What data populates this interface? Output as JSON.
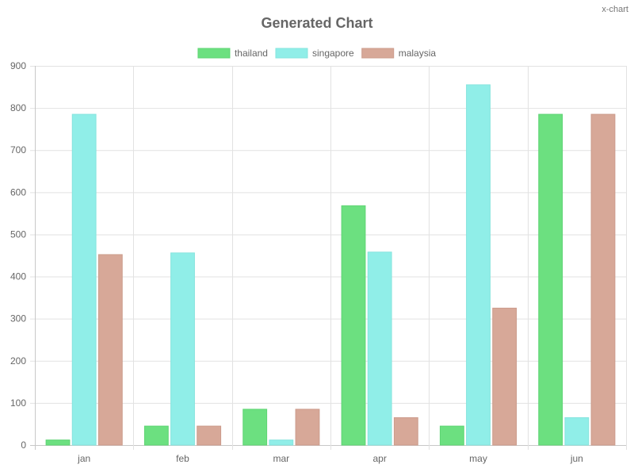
{
  "watermark": "x-chart",
  "chart_data": {
    "type": "bar",
    "title": "Generated Chart",
    "categories": [
      "jan",
      "feb",
      "mar",
      "apr",
      "may",
      "jun"
    ],
    "series": [
      {
        "name": "thailand",
        "values": [
          12,
          45,
          85,
          568,
          45,
          785
        ],
        "color": "#6ce080",
        "border": "#5fd474"
      },
      {
        "name": "singapore",
        "values": [
          785,
          456,
          12,
          458,
          855,
          65
        ],
        "color": "#90eee8",
        "border": "#86e4de"
      },
      {
        "name": "malaysia",
        "values": [
          452,
          45,
          85,
          65,
          325,
          785
        ],
        "color": "#d7a898",
        "border": "#cc9c8c"
      }
    ],
    "ylim": [
      0,
      900
    ],
    "yticks": [
      0,
      100,
      200,
      300,
      400,
      500,
      600,
      700,
      800,
      900
    ],
    "xlabel": "",
    "ylabel": "",
    "grid": true,
    "legend": "top-center"
  }
}
